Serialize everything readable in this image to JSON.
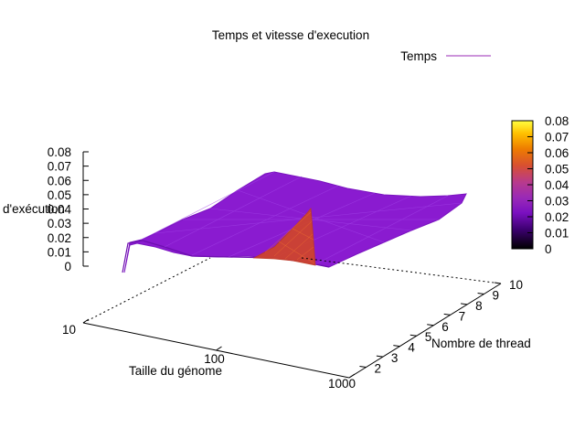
{
  "chart_data": {
    "type": "surface3d",
    "title": "Temps et vitesse d'execution",
    "xlabel": "Taille du génome",
    "ylabel": "Nombre de thread",
    "zlabel": "d'exécution",
    "legend": {
      "label": "Temps",
      "color": "#9a2ab6",
      "placement": "top-right"
    },
    "x_scale": "log",
    "x_ticks": [
      "10",
      "100",
      "1000"
    ],
    "x_range": [
      10,
      1000
    ],
    "y_ticks": [
      "2",
      "3",
      "4",
      "5",
      "6",
      "7",
      "8",
      "9",
      "10"
    ],
    "y_range": [
      1,
      10
    ],
    "z_ticks": [
      "0",
      "0.01",
      "0.02",
      "0.03",
      "0.04",
      "0.05",
      "0.06",
      "0.07",
      "0.08"
    ],
    "z_range": [
      0,
      0.08
    ],
    "colorbar": {
      "ticks": [
        "0",
        "0.01",
        "0.02",
        "0.03",
        "0.04",
        "0.05",
        "0.06",
        "0.07",
        "0.08"
      ],
      "range": [
        0,
        0.08
      ],
      "palette": [
        "#000000",
        "#4a007a",
        "#8a1bcc",
        "#9a2ab6",
        "#c04080",
        "#e05020",
        "#f08000",
        "#ffd000",
        "#ffff60"
      ]
    },
    "surface": {
      "description_values": [
        {
          "x": 10,
          "y": 1,
          "z": 0.003
        },
        {
          "x": 10,
          "y": 10,
          "z": 0.02
        },
        {
          "x": 1000,
          "y": 1,
          "z": 0.02
        },
        {
          "x": 1000,
          "y": 10,
          "z": 0.028
        },
        {
          "x": 400,
          "y": 1,
          "z": 0.037
        }
      ],
      "typical_z": 0.02,
      "peak": {
        "x": 400,
        "y": 1,
        "z": 0.037
      }
    }
  }
}
